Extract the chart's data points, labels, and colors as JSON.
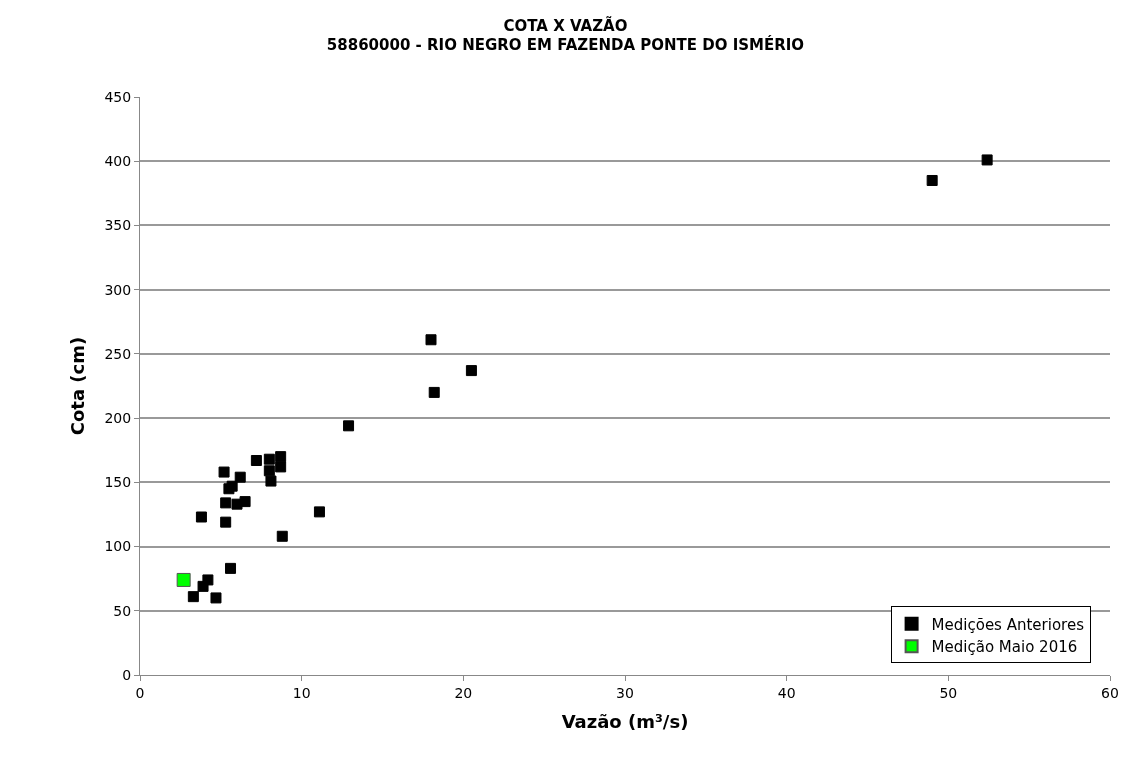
{
  "chart_data": {
    "type": "scatter",
    "title": "COTA X VAZÃO",
    "subtitle": "58860000 - RIO NEGRO EM FAZENDA PONTE DO ISMÉRIO",
    "xlabel": "Vazão (m³/s)",
    "ylabel": "Cota (cm)",
    "series": [
      {
        "name": "Medições Anteriores",
        "color": "#000000",
        "x": [
          3.3,
          3.9,
          4.2,
          4.7,
          5.6,
          3.8,
          5.3,
          5.3,
          5.5,
          5.7,
          5.2,
          6.0,
          6.2,
          6.5,
          7.2,
          8.0,
          8.0,
          8.1,
          8.7,
          8.7,
          8.8,
          11.1,
          12.9,
          18.0,
          18.2,
          20.5,
          49.0,
          52.4
        ],
        "values": [
          61,
          69,
          74,
          60,
          83,
          123,
          119,
          134,
          145,
          147,
          158,
          133,
          154,
          135,
          167,
          168,
          159,
          151,
          170,
          162,
          108,
          127,
          194,
          261,
          220,
          237,
          385,
          401
        ]
      },
      {
        "name": "Medição Maio 2016",
        "color": "#00ff00",
        "x": [
          2.7
        ],
        "values": [
          74
        ]
      }
    ],
    "xlim": [
      0,
      60
    ],
    "xticks": [
      0,
      10,
      20,
      30,
      40,
      50,
      60
    ],
    "ylim": [
      0,
      450
    ],
    "yticks": [
      0,
      50,
      100,
      150,
      200,
      250,
      300,
      350,
      400,
      450
    ],
    "grid": "y",
    "legend": "bottom right",
    "marker": "square"
  }
}
